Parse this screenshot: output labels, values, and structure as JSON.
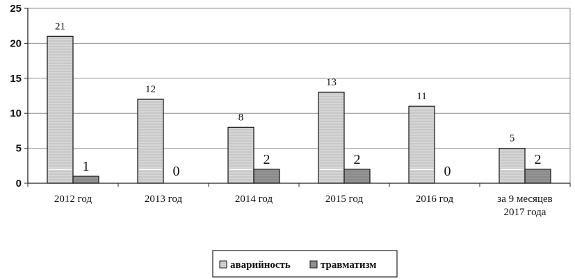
{
  "chart_data": {
    "type": "bar",
    "categories": [
      "2012 год",
      "2013 год",
      "2014 год",
      "2015 год",
      "2016 год",
      "за 9 месяцев\n2017 года"
    ],
    "series": [
      {
        "name": "аварийность",
        "values": [
          21,
          12,
          8,
          13,
          11,
          5
        ],
        "color": "#c8c8c8"
      },
      {
        "name": "травматизм",
        "values": [
          1,
          0,
          2,
          2,
          0,
          2
        ],
        "color": "#8a8a8a"
      }
    ],
    "ylim": [
      0,
      25
    ],
    "yticks": [
      0,
      5,
      10,
      15,
      20,
      25
    ],
    "grid": true,
    "legend": "bottom"
  }
}
